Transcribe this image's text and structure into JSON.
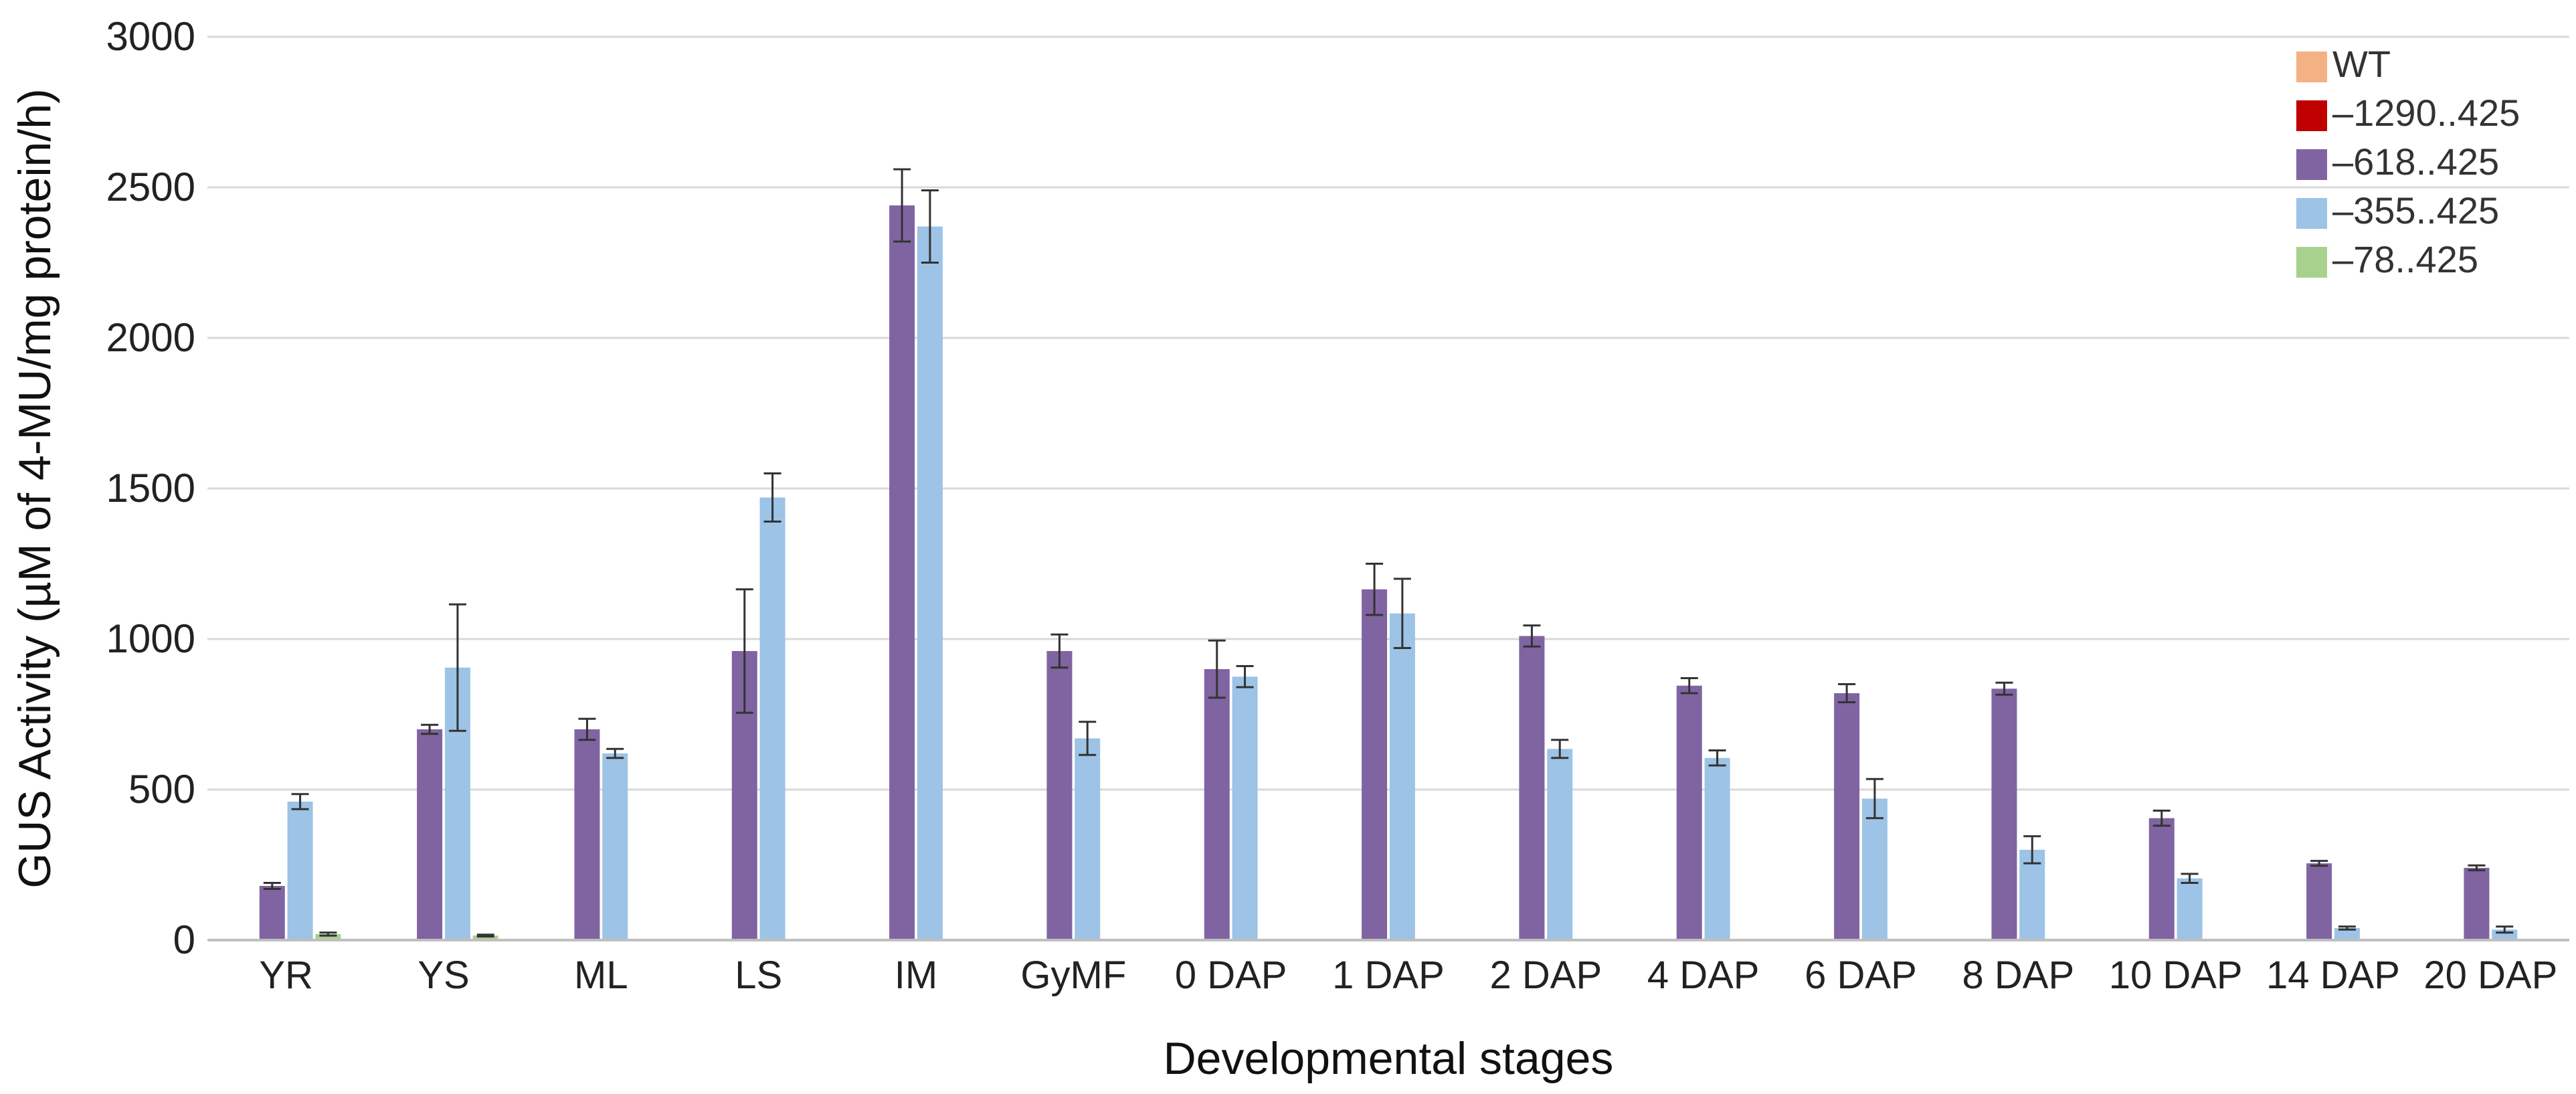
{
  "chart_data": {
    "type": "bar",
    "title": "",
    "xlabel": "Developmental stages",
    "ylabel": "GUS Activity (µM of 4-MU/mg protein/h)",
    "ylim": [
      0,
      3000
    ],
    "yticks": [
      0,
      500,
      1000,
      1500,
      2000,
      2500,
      3000
    ],
    "grid": true,
    "legend_position": "top-right",
    "categories": [
      "YR",
      "YS",
      "ML",
      "LS",
      "IM",
      "GyMF",
      "0 DAP",
      "1 DAP",
      "2 DAP",
      "4 DAP",
      "6 DAP",
      "8 DAP",
      "10 DAP",
      "14 DAP",
      "20 DAP"
    ],
    "series": [
      {
        "name": "WT",
        "color": "#F4B183",
        "values": [
          0,
          0,
          0,
          0,
          0,
          0,
          0,
          0,
          0,
          0,
          0,
          0,
          0,
          0,
          0
        ],
        "errors": [
          0,
          0,
          0,
          0,
          0,
          0,
          0,
          0,
          0,
          0,
          0,
          0,
          0,
          0,
          0
        ]
      },
      {
        "name": "–1290..425",
        "color": "#C00000",
        "values": [
          0,
          0,
          0,
          0,
          0,
          0,
          0,
          0,
          0,
          0,
          0,
          0,
          0,
          0,
          0
        ],
        "errors": [
          0,
          0,
          0,
          0,
          0,
          0,
          0,
          0,
          0,
          0,
          0,
          0,
          0,
          0,
          0
        ]
      },
      {
        "name": "–618..425",
        "color": "#8064A2",
        "values": [
          180,
          700,
          700,
          960,
          2440,
          960,
          900,
          1165,
          1010,
          845,
          820,
          835,
          405,
          255,
          240
        ],
        "errors": [
          10,
          15,
          35,
          205,
          120,
          55,
          95,
          85,
          35,
          25,
          30,
          20,
          25,
          8,
          8
        ]
      },
      {
        "name": "–355..425",
        "color": "#9DC3E6",
        "values": [
          460,
          905,
          620,
          1470,
          2370,
          670,
          875,
          1085,
          635,
          605,
          470,
          300,
          205,
          40,
          35
        ],
        "errors": [
          25,
          210,
          15,
          80,
          120,
          55,
          35,
          115,
          30,
          25,
          65,
          45,
          15,
          5,
          10
        ]
      },
      {
        "name": "–78..425",
        "color": "#A9D18E",
        "values": [
          20,
          15,
          0,
          0,
          0,
          0,
          0,
          0,
          0,
          0,
          0,
          0,
          0,
          0,
          0
        ],
        "errors": [
          5,
          3,
          0,
          0,
          0,
          0,
          0,
          0,
          0,
          0,
          0,
          0,
          0,
          0,
          0
        ]
      }
    ]
  }
}
